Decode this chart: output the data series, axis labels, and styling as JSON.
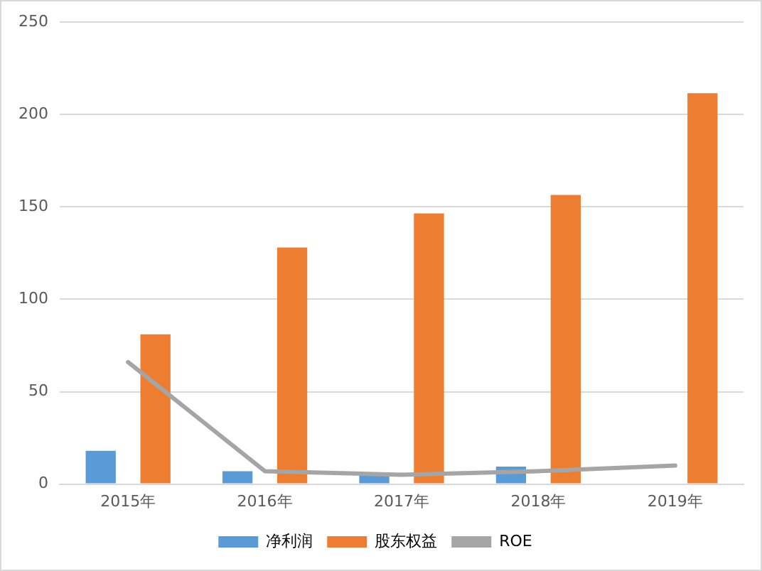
{
  "chart_data": {
    "type": "bar",
    "categories": [
      "2015年",
      "2016年",
      "2017年",
      "2018年",
      "2019年"
    ],
    "series": [
      {
        "name": "净利润",
        "color": "#5b9bd5",
        "values": [
          18,
          7,
          5,
          9.5,
          0
        ]
      },
      {
        "name": "股东权益",
        "color": "#ed7d31",
        "values": [
          81,
          128,
          146.5,
          156.5,
          211.5
        ]
      },
      {
        "name": "ROE",
        "color": "#a5a5a5",
        "type": "line",
        "values": [
          66,
          7,
          5,
          7,
          10
        ]
      }
    ],
    "ylim": [
      0,
      250
    ],
    "yticks": [
      0,
      50,
      100,
      150,
      200,
      250
    ],
    "grid": "y",
    "legend": "bottom",
    "marker": "none",
    "line_style": "solid"
  }
}
